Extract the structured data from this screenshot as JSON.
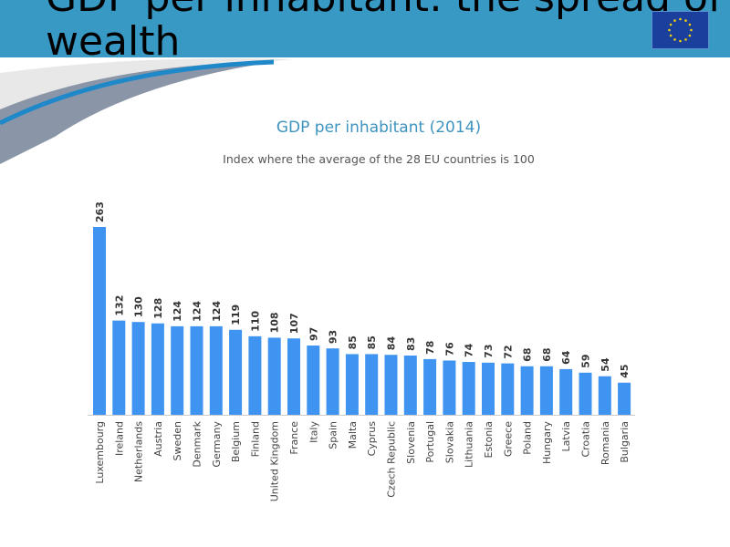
{
  "slide": {
    "title": "GDP per inhabitant: the spread of wealth",
    "logo": "eu-flag",
    "header_color": "#3799c4"
  },
  "chart_data": {
    "type": "bar",
    "title": "GDP per inhabitant (2014)",
    "subtitle": "Index where the average of the 28 EU countries is 100",
    "bar_color": "#3e94f0",
    "grid": false,
    "data_labels": true,
    "categories": [
      "Luxembourg",
      "Ireland",
      "Netherlands",
      "Austria",
      "Sweden",
      "Denmark",
      "Germany",
      "Belgium",
      "Finland",
      "United Kingdom",
      "France",
      "Italy",
      "Spain",
      "Malta",
      "Cyprus",
      "Czech Republic",
      "Slovenia",
      "Portugal",
      "Slovakia",
      "Lithuania",
      "Estonia",
      "Greece",
      "Poland",
      "Hungary",
      "Latvia",
      "Croatia",
      "Romania",
      "Bulgaria"
    ],
    "values": [
      263,
      132,
      130,
      128,
      124,
      124,
      124,
      119,
      110,
      108,
      107,
      97,
      93,
      85,
      85,
      84,
      83,
      78,
      76,
      74,
      73,
      72,
      68,
      68,
      64,
      59,
      54,
      45
    ]
  }
}
